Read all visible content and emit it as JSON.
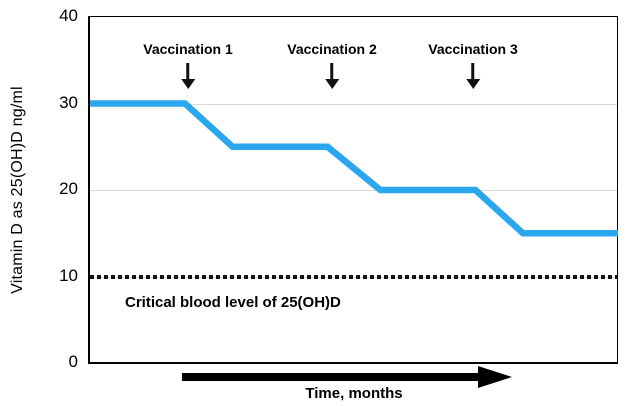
{
  "chart_data": {
    "type": "line",
    "title": "",
    "ylabel": "Vitamin D as 25(OH)D ng/ml",
    "xlabel": "Time, months",
    "ylim": [
      0,
      40
    ],
    "xlim": [
      0,
      10
    ],
    "y_ticks": [
      40,
      30,
      20,
      10,
      0
    ],
    "gridlines_at": [
      30,
      20,
      10
    ],
    "grid": "horizontal-light",
    "legend": "none",
    "series": [
      {
        "name": "Vitamin D blood level",
        "color": "#2BA7F0",
        "stroke_width": 6.5,
        "points": [
          [
            0,
            30
          ],
          [
            1.8,
            30
          ],
          [
            2.7,
            25
          ],
          [
            4.5,
            25
          ],
          [
            5.5,
            20
          ],
          [
            7.3,
            20
          ],
          [
            8.2,
            15
          ],
          [
            10,
            15
          ]
        ]
      }
    ],
    "reference_line": {
      "y": 10,
      "style": "dotted",
      "color": "#141414",
      "label": "Critical blood level of 25(OH)D"
    },
    "annotations": [
      {
        "label": "Vaccination 1",
        "x": 1.85,
        "arrow": "down-arrow-icon"
      },
      {
        "label": "Vaccination 2",
        "x": 4.58,
        "arrow": "down-arrow-icon"
      },
      {
        "label": "Vaccination 3",
        "x": 7.25,
        "arrow": "down-arrow-icon"
      }
    ],
    "x_axis_arrow": "right-arrow-icon"
  },
  "colors": {
    "line": "#2BA7F0",
    "grid": "#D9D9D9",
    "axis": "#000000",
    "text": "#000000",
    "background": "#FFFFFF"
  }
}
